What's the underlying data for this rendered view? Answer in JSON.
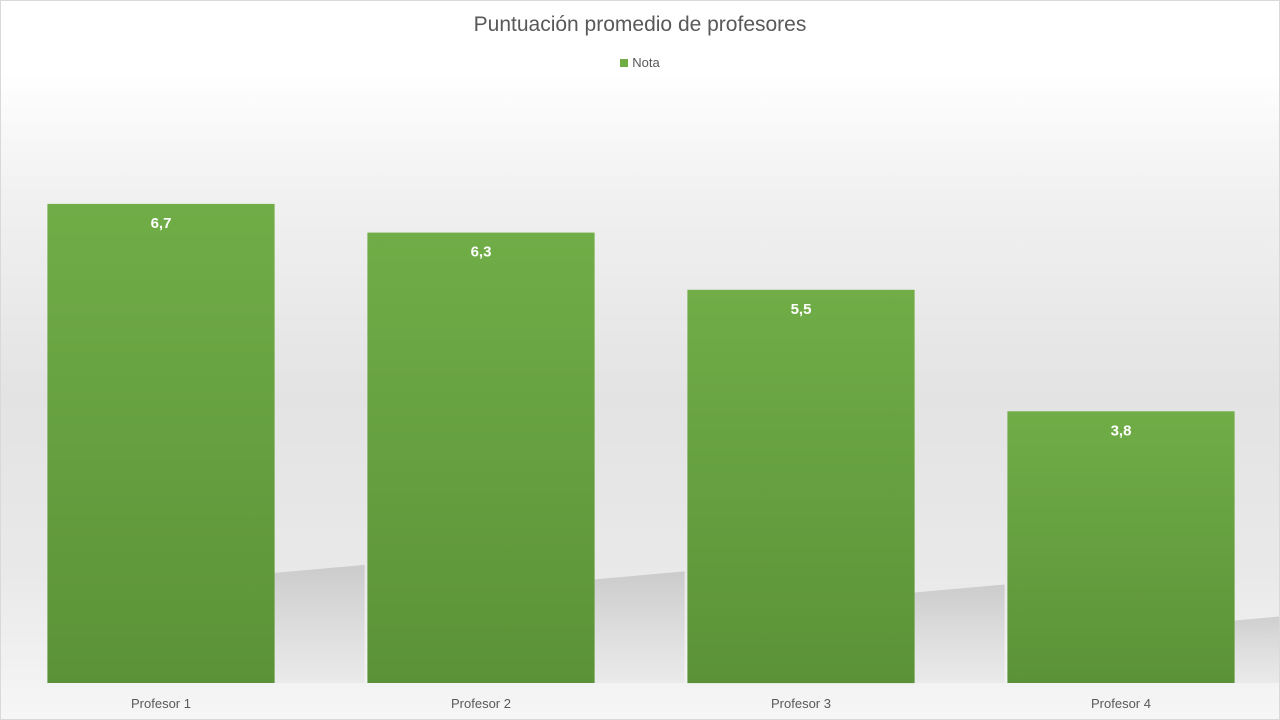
{
  "chart_data": {
    "type": "bar",
    "title": "Puntuación promedio de profesores",
    "xlabel": "",
    "ylabel": "",
    "ylim": [
      0,
      8
    ],
    "categories": [
      "Profesor 1",
      "Profesor 2",
      "Profesor 3",
      "Profesor 4"
    ],
    "series": [
      {
        "name": "Nota",
        "values": [
          6.7,
          6.3,
          5.5,
          3.8
        ],
        "data_labels": [
          "6,7",
          "6,3",
          "5,5",
          "3,8"
        ],
        "color": "#70ad47"
      }
    ],
    "legend_position": "top",
    "grid": false,
    "colors": {
      "bar_top": "#70ad47",
      "bar_bottom": "#5b9238",
      "shadow": "#b3b3b3"
    }
  }
}
